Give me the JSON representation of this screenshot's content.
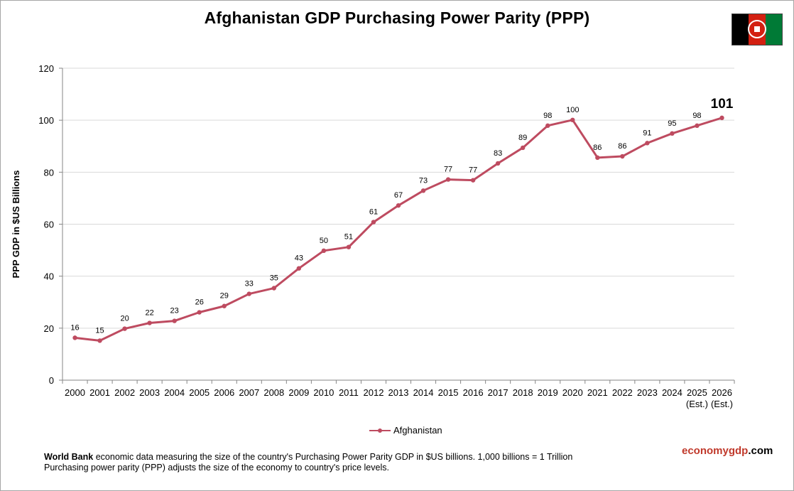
{
  "chart_data": {
    "type": "line",
    "title": "Afghanistan GDP Purchasing Power Parity (PPP)",
    "ylabel": "PPP GDP in $US Billions",
    "xlabel": "",
    "ylim": [
      0,
      120
    ],
    "yticks": [
      0,
      20,
      40,
      60,
      80,
      100,
      120
    ],
    "grid": "horizontal",
    "legend_position": "bottom-center",
    "categories": [
      "2000",
      "2001",
      "2002",
      "2003",
      "2004",
      "2005",
      "2006",
      "2007",
      "2008",
      "2009",
      "2010",
      "2011",
      "2012",
      "2013",
      "2014",
      "2015",
      "2016",
      "2017",
      "2018",
      "2019",
      "2020",
      "2021",
      "2022",
      "2023",
      "2024",
      "2025",
      "2026"
    ],
    "category_sublabels": [
      "",
      "",
      "",
      "",
      "",
      "",
      "",
      "",
      "",
      "",
      "",
      "",
      "",
      "",
      "",
      "",
      "",
      "",
      "",
      "",
      "",
      "",
      "",
      "",
      "",
      "(Est.)",
      "(Est.)"
    ],
    "series": [
      {
        "name": "Afghanistan",
        "color": "#be4b60",
        "values": [
          16.3,
          15.2,
          19.8,
          22.0,
          22.8,
          26.1,
          28.5,
          33.2,
          35.4,
          43.0,
          49.8,
          51.2,
          60.8,
          67.2,
          72.9,
          77.2,
          76.9,
          83.4,
          89.4,
          97.9,
          100.1,
          85.6,
          86.1,
          91.2,
          94.9,
          97.9,
          100.9
        ],
        "labels": [
          "16",
          "15",
          "20",
          "22",
          "23",
          "26",
          "29",
          "33",
          "35",
          "43",
          "50",
          "51",
          "61",
          "67",
          "73",
          "77",
          "77",
          "83",
          "89",
          "98",
          "100",
          "86",
          "86",
          "91",
          "95",
          "98",
          "101"
        ]
      }
    ]
  },
  "footer": {
    "source_bold": "World Bank",
    "line1_rest": " economic data measuring the size of the country's Purchasing Power Parity GDP in $US billions. 1,000 billions = 1 Trillion",
    "line2": "Purchasing power parity (PPP) adjusts the size of the economy to country's price levels."
  },
  "brand": {
    "part1": "economy",
    "part2": "gdp",
    "part3": ".com"
  },
  "flag": {
    "icon": "afghanistan-flag-icon"
  }
}
